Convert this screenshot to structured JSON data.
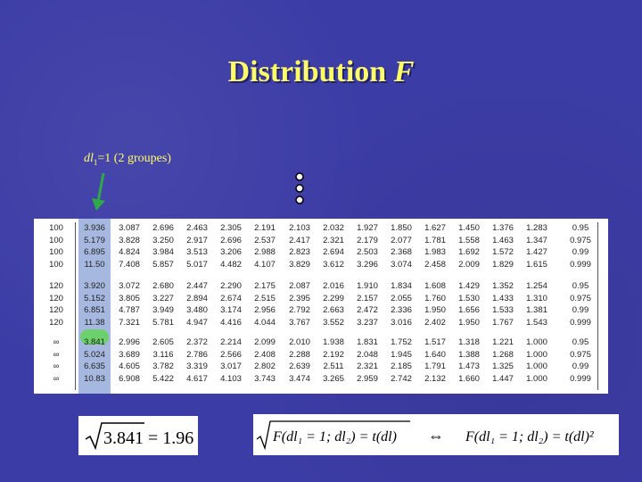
{
  "title": {
    "text": "Distribution ",
    "variable": "F"
  },
  "annotation": {
    "prefix": "dl",
    "sub": "1",
    "rest": "=1 (2 groupes)"
  },
  "table": {
    "highlight_color": "#6cd06c",
    "column_highlight_color": "#a6b8e0",
    "rows": [
      [
        "100",
        "3.936",
        "3.087",
        "2.696",
        "2.463",
        "2.305",
        "2.191",
        "2.103",
        "2.032",
        "1.927",
        "1.850",
        "1.627",
        "1.450",
        "1.376",
        "1.283",
        "0.95"
      ],
      [
        "100",
        "5.179",
        "3.828",
        "3.250",
        "2.917",
        "2.696",
        "2.537",
        "2.417",
        "2.321",
        "2.179",
        "2.077",
        "1.781",
        "1.558",
        "1.463",
        "1.347",
        "0.975"
      ],
      [
        "100",
        "6.895",
        "4.824",
        "3.984",
        "3.513",
        "3.206",
        "2.988",
        "2.823",
        "2.694",
        "2.503",
        "2.368",
        "1.983",
        "1.692",
        "1.572",
        "1.427",
        "0.99"
      ],
      [
        "100",
        "11.50",
        "7.408",
        "5.857",
        "5.017",
        "4.482",
        "4.107",
        "3.829",
        "3.612",
        "3.296",
        "3.074",
        "2.458",
        "2.009",
        "1.829",
        "1.615",
        "0.999"
      ],
      [
        "120",
        "3.920",
        "3.072",
        "2.680",
        "2.447",
        "2.290",
        "2.175",
        "2.087",
        "2.016",
        "1.910",
        "1.834",
        "1.608",
        "1.429",
        "1.352",
        "1.254",
        "0.95"
      ],
      [
        "120",
        "5.152",
        "3.805",
        "3.227",
        "2.894",
        "2.674",
        "2.515",
        "2.395",
        "2.299",
        "2.157",
        "2.055",
        "1.760",
        "1.530",
        "1.433",
        "1.310",
        "0.975"
      ],
      [
        "120",
        "6.851",
        "4.787",
        "3.949",
        "3.480",
        "3.174",
        "2.956",
        "2.792",
        "2.663",
        "2.472",
        "2.336",
        "1.950",
        "1.656",
        "1.533",
        "1.381",
        "0.99"
      ],
      [
        "120",
        "11.38",
        "7.321",
        "5.781",
        "4.947",
        "4.416",
        "4.044",
        "3.767",
        "3.552",
        "3.237",
        "3.016",
        "2.402",
        "1.950",
        "1.767",
        "1.543",
        "0.999"
      ],
      [
        "∞",
        "3.841",
        "2.996",
        "2.605",
        "2.372",
        "2.214",
        "2.099",
        "2.010",
        "1.938",
        "1.831",
        "1.752",
        "1.517",
        "1.318",
        "1.221",
        "1.000",
        "0.95"
      ],
      [
        "∞",
        "5.024",
        "3.689",
        "3.116",
        "2.786",
        "2.566",
        "2.408",
        "2.288",
        "2.192",
        "2.048",
        "1.945",
        "1.640",
        "1.388",
        "1.268",
        "1.000",
        "0.975"
      ],
      [
        "∞",
        "6.635",
        "4.605",
        "3.782",
        "3.319",
        "3.017",
        "2.802",
        "2.639",
        "2.511",
        "2.321",
        "2.185",
        "1.791",
        "1.473",
        "1.325",
        "1.000",
        "0.99"
      ],
      [
        "∞",
        "10.83",
        "6.908",
        "5.422",
        "4.617",
        "4.103",
        "3.743",
        "3.474",
        "3.265",
        "2.959",
        "2.742",
        "2.132",
        "1.660",
        "1.447",
        "1.000",
        "0.999"
      ]
    ]
  },
  "formula_sqrt": {
    "radicand": "3.841",
    "result": "= 1.96"
  },
  "formula_eq": {
    "left_sqrt": "F(dl₁ = 1; dl₂) = t(dl)",
    "symbol": "⇔",
    "right": "F(dl₁ = 1; dl₂) = t(dl)²"
  }
}
